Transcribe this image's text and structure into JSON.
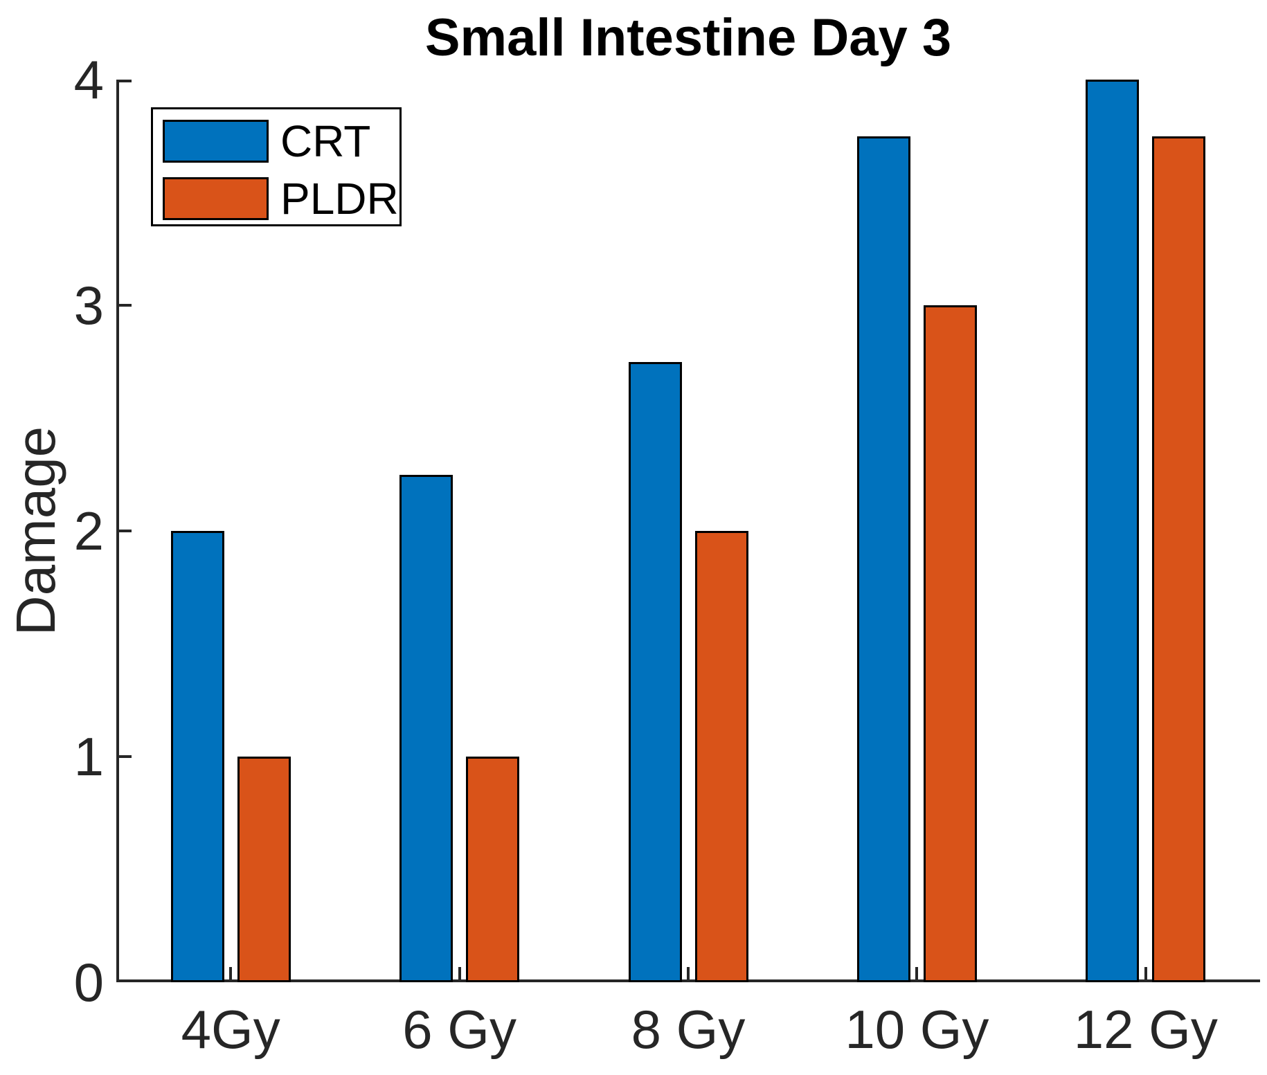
{
  "chart_data": {
    "type": "bar",
    "title": "Small Intestine Day 3",
    "xlabel": "",
    "ylabel": "Damage",
    "categories": [
      "4Gy",
      "6 Gy",
      "8 Gy",
      "10 Gy",
      "12 Gy"
    ],
    "series": [
      {
        "name": "CRT",
        "color": "#0072BD",
        "values": [
          2,
          2.25,
          2.75,
          3.75,
          4
        ]
      },
      {
        "name": "PLDR",
        "color": "#D95319",
        "values": [
          1,
          1,
          2,
          3,
          3.75
        ]
      }
    ],
    "ylim": [
      0,
      4
    ],
    "yticks": [
      0,
      1,
      2,
      3,
      4
    ],
    "ytick_labels": [
      "0",
      "1",
      "2",
      "3",
      "4"
    ],
    "grid": false,
    "legend_position": "top-left",
    "bar_edge_color": "#000000",
    "axis_color": "#262626",
    "title_color": "#000000",
    "background_color": "#ffffff"
  }
}
